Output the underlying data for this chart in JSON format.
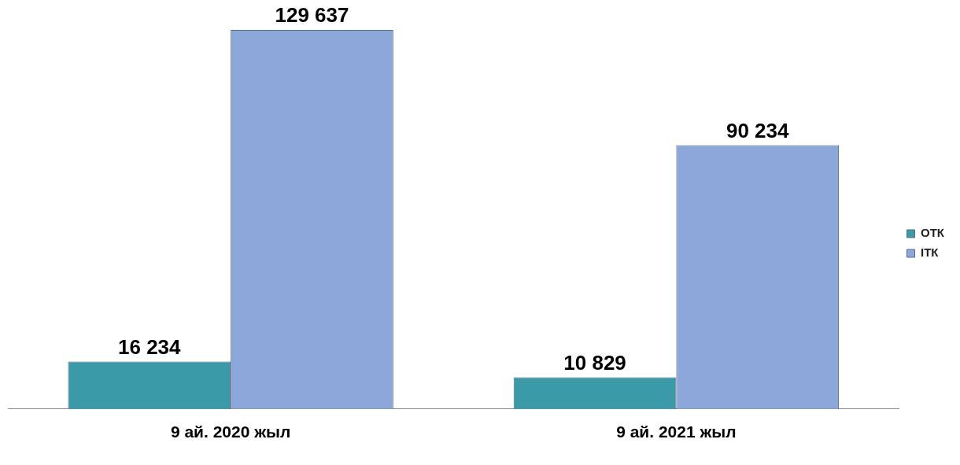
{
  "chart_data": {
    "type": "bar",
    "categories": [
      "9 ай. 2020 жыл",
      "9 ай. 2021 жыл"
    ],
    "series": [
      {
        "name": "ОТК",
        "color": "#3a9aa8",
        "values": [
          16234,
          10829
        ],
        "value_labels": [
          "16 234",
          "10 829"
        ]
      },
      {
        "name": "ІТК",
        "color": "#8ca8da",
        "values": [
          129637,
          90234
        ],
        "value_labels": [
          "129 637",
          "90 234"
        ]
      }
    ],
    "legend": "right"
  }
}
